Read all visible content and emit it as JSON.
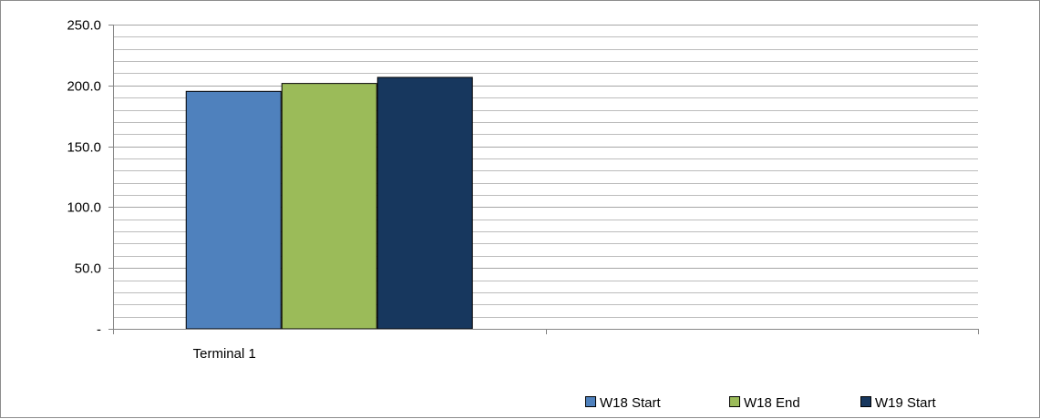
{
  "chart_data": {
    "type": "bar",
    "title": "",
    "xlabel": "",
    "ylabel": "",
    "categories": [
      "Terminal 1",
      ""
    ],
    "series": [
      {
        "name": "W18 Start",
        "color": "#4f81bd",
        "values": [
          195.5,
          null
        ]
      },
      {
        "name": "W18 End",
        "color": "#9bbb59",
        "values": [
          202.0,
          null
        ]
      },
      {
        "name": "W19 Start",
        "color": "#17375e",
        "values": [
          207.0,
          null
        ]
      }
    ],
    "ylim": [
      0,
      250
    ],
    "major_tick_step": 50,
    "minor_gridline_step": 10,
    "y_tick_labels": [
      "-",
      "50.0",
      "100.0",
      "150.0",
      "200.0",
      "250.0"
    ],
    "grid": true,
    "legend_position": "bottom-right",
    "gridline_color": "#a6a6a6",
    "axis_color": "#868686"
  }
}
